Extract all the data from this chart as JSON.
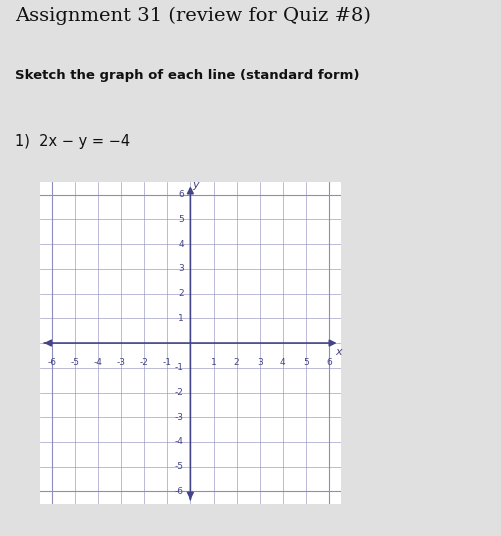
{
  "title": "Assignment 31 (review for Quiz #8)",
  "subtitle": "Sketch the graph of each line (standard form)",
  "problem": "1)  2x − y = −4",
  "bg_color": "#e0e0e0",
  "grid_color": "#8888bb",
  "axis_color": "#444488",
  "text_color": "#111111",
  "xmin": -6,
  "xmax": 6,
  "ymin": -6,
  "ymax": 6,
  "title_fontsize": 14,
  "subtitle_fontsize": 9.5,
  "problem_fontsize": 10.5
}
